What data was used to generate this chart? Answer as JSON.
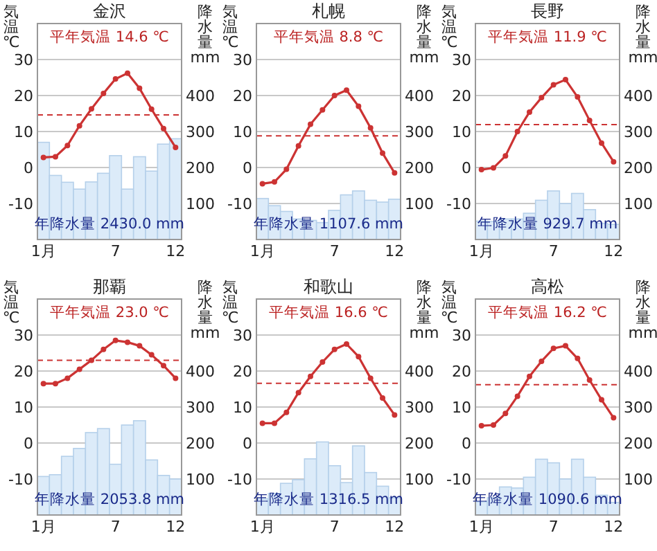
{
  "chart_data": [
    {
      "type": "line",
      "title": "金沢",
      "ylabel": "気温 ℃",
      "y2label": "降水量 mm",
      "categories": [
        "1月",
        null,
        null,
        null,
        null,
        null,
        "7",
        null,
        null,
        null,
        null,
        "12"
      ],
      "ylim": [
        -20,
        40
      ],
      "yticks": [
        -10,
        0,
        10,
        20,
        30
      ],
      "y2lim": [
        0,
        600
      ],
      "y2ticks": [
        100,
        200,
        300,
        400
      ],
      "grid": "y",
      "marker": "circle",
      "annotations": [
        "平年気温 14.6 ℃",
        "年降水量 2430.0 mm"
      ],
      "ref_lines": [
        {
          "axis": "y",
          "value": 14.6,
          "color": "#cc3333",
          "line_style": "dashed"
        }
      ],
      "series": [
        {
          "type": "bar",
          "axis": "y2",
          "color": "#dcebf9",
          "values": [
            270,
            178,
            159,
            140,
            160,
            184,
            233,
            140,
            230,
            190,
            265,
            280
          ]
        },
        {
          "color": "#cc3333",
          "values": [
            2.8,
            3.0,
            6.1,
            11.6,
            16.3,
            20.6,
            24.6,
            26.2,
            22.0,
            16.2,
            10.8,
            5.6
          ]
        }
      ]
    },
    {
      "type": "line",
      "title": "札幌",
      "ylabel": "気温 ℃",
      "y2label": "降水量 mm",
      "categories": [
        "1月",
        null,
        null,
        null,
        null,
        null,
        "7",
        null,
        null,
        null,
        null,
        "12"
      ],
      "ylim": [
        -20,
        40
      ],
      "yticks": [
        -10,
        0,
        10,
        20,
        30
      ],
      "y2lim": [
        0,
        600
      ],
      "y2ticks": [
        100,
        200,
        300,
        400
      ],
      "grid": "y",
      "marker": "circle",
      "annotations": [
        "平年気温 8.8 ℃",
        "年降水量 1107.6 mm"
      ],
      "ref_lines": [
        {
          "axis": "y",
          "value": 8.8,
          "color": "#cc3333",
          "line_style": "dashed"
        }
      ],
      "series": [
        {
          "type": "bar",
          "axis": "y2",
          "color": "#dcebf9",
          "values": [
            114,
            94,
            78,
            57,
            53,
            47,
            81,
            124,
            135,
            109,
            104,
            112
          ]
        },
        {
          "color": "#cc3333",
          "values": [
            -4.5,
            -4.0,
            -0.5,
            6.0,
            12.0,
            16.0,
            20.0,
            21.5,
            17.0,
            11.0,
            4.0,
            -1.5
          ]
        }
      ]
    },
    {
      "type": "line",
      "title": "長野",
      "ylabel": "気温 ℃",
      "y2label": "降水量 mm",
      "categories": [
        "1月",
        null,
        null,
        null,
        null,
        null,
        "7",
        null,
        null,
        null,
        null,
        "12"
      ],
      "ylim": [
        -20,
        40
      ],
      "yticks": [
        -10,
        0,
        10,
        20,
        30
      ],
      "y2lim": [
        0,
        600
      ],
      "y2ticks": [
        100,
        200,
        300,
        400
      ],
      "grid": "y",
      "marker": "circle",
      "annotations": [
        "平年気温 11.9 ℃",
        "年降水量 929.7 mm"
      ],
      "ref_lines": [
        {
          "axis": "y",
          "value": 11.9,
          "color": "#cc3333",
          "line_style": "dashed"
        }
      ],
      "series": [
        {
          "type": "bar",
          "axis": "y2",
          "color": "#dcebf9",
          "values": [
            51,
            50,
            57,
            57,
            73,
            109,
            135,
            100,
            128,
            83,
            45,
            42
          ]
        },
        {
          "color": "#cc3333",
          "values": [
            -0.6,
            -0.1,
            3.2,
            10.0,
            15.4,
            19.4,
            23.0,
            24.4,
            19.6,
            13.1,
            6.8,
            1.6
          ]
        }
      ]
    },
    {
      "type": "line",
      "title": "那覇",
      "ylabel": "気温 ℃",
      "y2label": "降水量 mm",
      "categories": [
        "1月",
        null,
        null,
        null,
        null,
        null,
        "7",
        null,
        null,
        null,
        null,
        "12"
      ],
      "ylim": [
        -20,
        40
      ],
      "yticks": [
        -10,
        0,
        10,
        20,
        30
      ],
      "y2lim": [
        0,
        600
      ],
      "y2ticks": [
        100,
        200,
        300,
        400
      ],
      "grid": "y",
      "marker": "circle",
      "annotations": [
        "平年気温 23.0 ℃",
        "年降水量 2053.8 mm"
      ],
      "ref_lines": [
        {
          "axis": "y",
          "value": 23.0,
          "color": "#cc3333",
          "line_style": "dashed"
        }
      ],
      "series": [
        {
          "type": "bar",
          "axis": "y2",
          "color": "#dcebf9",
          "values": [
            107,
            112,
            163,
            185,
            229,
            240,
            141,
            250,
            262,
            153,
            110,
            100
          ]
        },
        {
          "color": "#cc3333",
          "values": [
            16.5,
            16.5,
            18.0,
            20.5,
            23.0,
            26.0,
            28.5,
            28.0,
            27.0,
            24.5,
            21.5,
            18.0
          ]
        }
      ]
    },
    {
      "type": "line",
      "title": "和歌山",
      "ylabel": "気温 ℃",
      "y2label": "降水量 mm",
      "categories": [
        "1月",
        null,
        null,
        null,
        null,
        null,
        "7",
        null,
        null,
        null,
        null,
        "12"
      ],
      "ylim": [
        -20,
        40
      ],
      "yticks": [
        -10,
        0,
        10,
        20,
        30
      ],
      "y2lim": [
        0,
        600
      ],
      "y2ticks": [
        100,
        200,
        300,
        400
      ],
      "grid": "y",
      "marker": "circle",
      "annotations": [
        "平年気温 16.6 ℃",
        "年降水量 1316.5 mm"
      ],
      "ref_lines": [
        {
          "axis": "y",
          "value": 16.6,
          "color": "#cc3333",
          "line_style": "dashed"
        }
      ],
      "series": [
        {
          "type": "bar",
          "axis": "y2",
          "color": "#dcebf9",
          "values": [
            45,
            60,
            88,
            98,
            156,
            203,
            137,
            90,
            192,
            118,
            80,
            48
          ]
        },
        {
          "color": "#cc3333",
          "values": [
            5.5,
            5.5,
            8.5,
            14.0,
            18.5,
            22.5,
            26.0,
            27.5,
            24.0,
            18.0,
            12.5,
            7.8
          ]
        }
      ]
    },
    {
      "type": "line",
      "title": "高松",
      "ylabel": "気温 ℃",
      "y2label": "降水量 mm",
      "categories": [
        "1月",
        null,
        null,
        null,
        null,
        null,
        "7",
        null,
        null,
        null,
        null,
        "12"
      ],
      "ylim": [
        -20,
        40
      ],
      "yticks": [
        -10,
        0,
        10,
        20,
        30
      ],
      "y2lim": [
        0,
        600
      ],
      "y2ticks": [
        100,
        200,
        300,
        400
      ],
      "grid": "y",
      "marker": "circle",
      "annotations": [
        "平年気温 16.2 ℃",
        "年降水量 1090.6 mm"
      ],
      "ref_lines": [
        {
          "axis": "y",
          "value": 16.2,
          "color": "#cc3333",
          "line_style": "dashed"
        }
      ],
      "series": [
        {
          "type": "bar",
          "axis": "y2",
          "color": "#dcebf9",
          "values": [
            37,
            48,
            78,
            75,
            105,
            155,
            145,
            100,
            155,
            105,
            55,
            35
          ]
        },
        {
          "color": "#cc3333",
          "values": [
            4.8,
            5.0,
            8.2,
            13.0,
            18.5,
            22.7,
            26.3,
            27.0,
            23.5,
            17.5,
            12.0,
            7.0
          ]
        }
      ]
    }
  ]
}
